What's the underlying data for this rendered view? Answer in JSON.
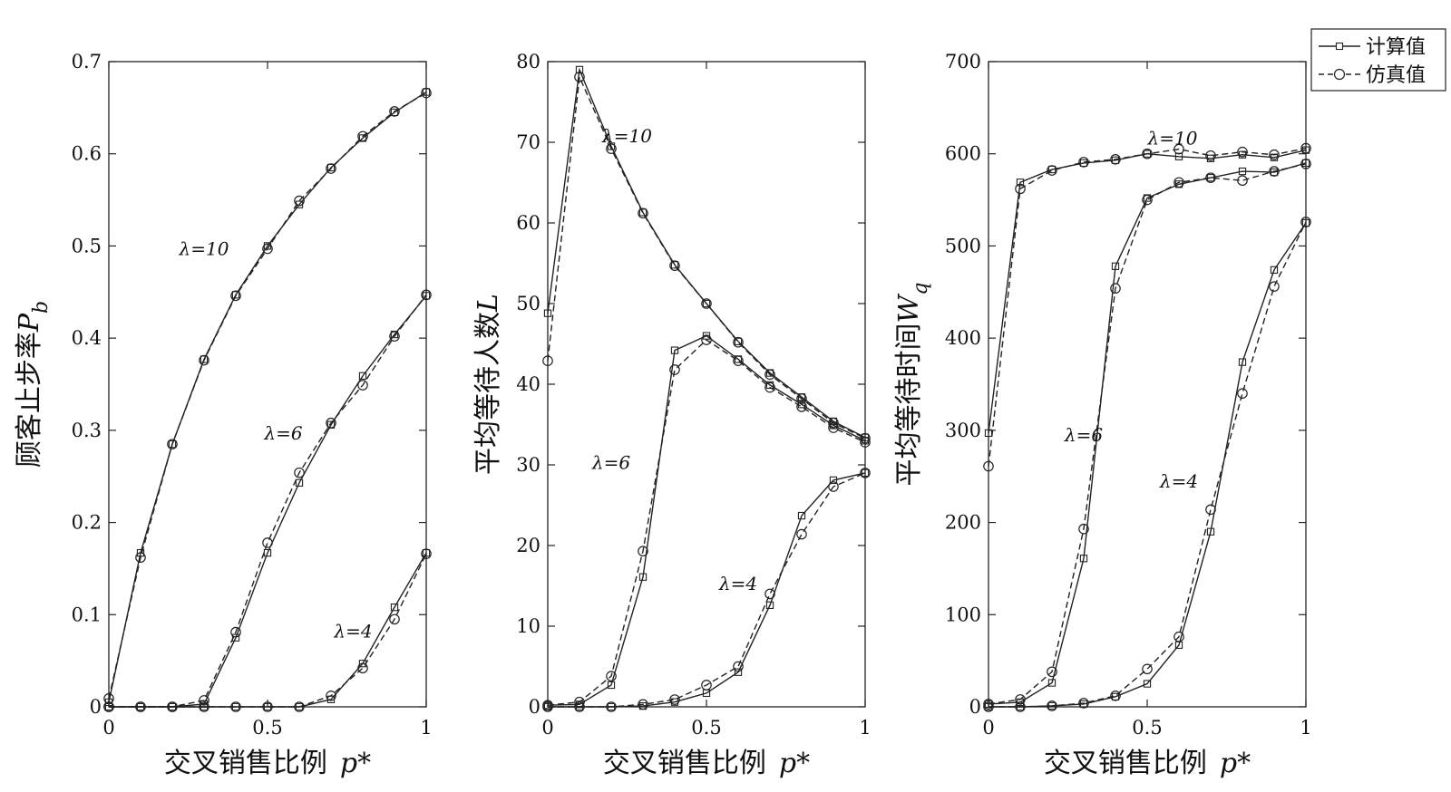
{
  "legend": {
    "entries": [
      {
        "label": "计算值",
        "marker": "square",
        "dash": "solid"
      },
      {
        "label": "仿真值",
        "marker": "circle",
        "dash": "dashed"
      }
    ],
    "placement": "top-right"
  },
  "chart_data": [
    {
      "type": "line",
      "xlabel": "交叉销售比例",
      "xlabel_symbol": "p*",
      "ylabel": "顾客止步率",
      "ylabel_symbol": "P",
      "ylabel_sub": "b",
      "xlim": [
        0,
        1
      ],
      "ylim": [
        0,
        0.7
      ],
      "xticks": [
        0,
        0.5,
        1
      ],
      "xtick_labels": [
        "0",
        "0.5",
        "1"
      ],
      "yticks": [
        0,
        0.1,
        0.2,
        0.3,
        0.4,
        0.5,
        0.6,
        0.7
      ],
      "ytick_labels": [
        "0",
        "0.1",
        "0.2",
        "0.3",
        "0.4",
        "0.5",
        "0.6",
        "0.7"
      ],
      "x": [
        0,
        0.1,
        0.2,
        0.3,
        0.4,
        0.5,
        0.6,
        0.7,
        0.8,
        0.9,
        1.0
      ],
      "annotations": [
        {
          "text": "λ=10",
          "x": 0.3,
          "y": 0.49
        },
        {
          "text": "λ=6",
          "x": 0.55,
          "y": 0.29
        },
        {
          "text": "λ=4",
          "x": 0.77,
          "y": 0.075
        }
      ],
      "series": [
        {
          "name": "计算值",
          "lambda": "10",
          "values": [
            0.005,
            0.167,
            0.285,
            0.377,
            0.447,
            0.5,
            0.545,
            0.585,
            0.617,
            0.645,
            0.667
          ]
        },
        {
          "name": "仿真值",
          "lambda": "10",
          "values": [
            0.009,
            0.162,
            0.285,
            0.376,
            0.446,
            0.497,
            0.549,
            0.584,
            0.619,
            0.646,
            0.666
          ]
        },
        {
          "name": "计算值",
          "lambda": "6",
          "values": [
            0,
            0,
            0,
            0.003,
            0.075,
            0.167,
            0.243,
            0.306,
            0.359,
            0.404,
            0.446
          ]
        },
        {
          "name": "仿真值",
          "lambda": "6",
          "values": [
            0,
            0,
            0,
            0.007,
            0.081,
            0.178,
            0.254,
            0.308,
            0.349,
            0.402,
            0.447
          ]
        },
        {
          "name": "计算值",
          "lambda": "4",
          "values": [
            0,
            0,
            0,
            0,
            0,
            0,
            0,
            0.008,
            0.047,
            0.108,
            0.167
          ]
        },
        {
          "name": "仿真值",
          "lambda": "4",
          "values": [
            0,
            0,
            0,
            0,
            0,
            0,
            0,
            0.012,
            0.042,
            0.095,
            0.166
          ]
        }
      ]
    },
    {
      "type": "line",
      "xlabel": "交叉销售比例",
      "xlabel_symbol": "p*",
      "ylabel": "平均等待人数",
      "ylabel_symbol": "L",
      "ylabel_sub": "",
      "xlim": [
        0,
        1
      ],
      "ylim": [
        0,
        80
      ],
      "xticks": [
        0,
        0.5,
        1
      ],
      "xtick_labels": [
        "0",
        "0.5",
        "1"
      ],
      "yticks": [
        0,
        10,
        20,
        30,
        40,
        50,
        60,
        70,
        80
      ],
      "ytick_labels": [
        "0",
        "10",
        "20",
        "30",
        "40",
        "50",
        "60",
        "70",
        "80"
      ],
      "x": [
        0,
        0.1,
        0.2,
        0.3,
        0.4,
        0.5,
        0.6,
        0.7,
        0.8,
        0.9,
        1.0
      ],
      "annotations": [
        {
          "text": "λ=10",
          "x": 0.25,
          "y": 70
        },
        {
          "text": "λ=6",
          "x": 0.2,
          "y": 29.5
        },
        {
          "text": "λ=4",
          "x": 0.6,
          "y": 14.5
        }
      ],
      "series": [
        {
          "name": "计算值",
          "lambda": "10",
          "values": [
            48.8,
            79.0,
            69.5,
            61.3,
            54.8,
            50.0,
            45.3,
            41.4,
            38.4,
            35.4,
            33.4
          ]
        },
        {
          "name": "仿真值",
          "lambda": "10",
          "values": [
            42.9,
            78.1,
            69.2,
            61.2,
            54.7,
            50.0,
            45.2,
            41.2,
            38.2,
            35.2,
            33.3
          ]
        },
        {
          "name": "计算值",
          "lambda": "6",
          "values": [
            0.2,
            0.3,
            2.7,
            16.1,
            44.2,
            46.0,
            43.1,
            39.9,
            37.5,
            34.9,
            33.0
          ]
        },
        {
          "name": "仿真值",
          "lambda": "6",
          "values": [
            0.2,
            0.6,
            3.8,
            19.3,
            41.8,
            45.5,
            42.9,
            39.6,
            37.2,
            34.6,
            32.8
          ]
        },
        {
          "name": "计算值",
          "lambda": "4",
          "values": [
            0,
            0,
            0,
            0.1,
            0.6,
            1.7,
            4.3,
            12.6,
            23.7,
            28.1,
            29.0
          ]
        },
        {
          "name": "仿真值",
          "lambda": "4",
          "values": [
            0,
            0,
            0,
            0.3,
            0.9,
            2.7,
            5.0,
            14.0,
            21.4,
            27.3,
            29.0
          ]
        }
      ]
    },
    {
      "type": "line",
      "xlabel": "交叉销售比例",
      "xlabel_symbol": "p*",
      "ylabel": "平均等待时间",
      "ylabel_symbol": "W",
      "ylabel_sub": "q",
      "xlim": [
        0,
        1
      ],
      "ylim": [
        0,
        700
      ],
      "xticks": [
        0,
        0.5,
        1
      ],
      "xtick_labels": [
        "0",
        "0.5",
        "1"
      ],
      "yticks": [
        0,
        100,
        200,
        300,
        400,
        500,
        600,
        700
      ],
      "ytick_labels": [
        "0",
        "100",
        "200",
        "300",
        "400",
        "500",
        "600",
        "700"
      ],
      "x": [
        0,
        0.1,
        0.2,
        0.3,
        0.4,
        0.5,
        0.6,
        0.7,
        0.8,
        0.9,
        1.0
      ],
      "annotations": [
        {
          "text": "λ=10",
          "x": 0.58,
          "y": 610
        },
        {
          "text": "λ=6",
          "x": 0.3,
          "y": 288
        },
        {
          "text": "λ=4",
          "x": 0.6,
          "y": 238
        }
      ],
      "series": [
        {
          "name": "计算值",
          "lambda": "10",
          "values": [
            297,
            569,
            583,
            590,
            593,
            600,
            597,
            595,
            599,
            596,
            604
          ]
        },
        {
          "name": "仿真值",
          "lambda": "10",
          "values": [
            261,
            562,
            582,
            591,
            594,
            600,
            605,
            598,
            602,
            599,
            606
          ]
        },
        {
          "name": "计算值",
          "lambda": "6",
          "values": [
            3,
            5,
            26,
            161,
            478,
            552,
            567,
            574,
            581,
            580,
            590
          ]
        },
        {
          "name": "仿真值",
          "lambda": "6",
          "values": [
            3,
            8,
            38,
            193,
            454,
            550,
            569,
            574,
            571,
            581,
            589
          ]
        },
        {
          "name": "计算值",
          "lambda": "4",
          "values": [
            0,
            0,
            1,
            3,
            11,
            25,
            67,
            190,
            374,
            474,
            525
          ]
        },
        {
          "name": "仿真值",
          "lambda": "4",
          "values": [
            0,
            0,
            1,
            4,
            12,
            41,
            76,
            214,
            340,
            456,
            526
          ]
        }
      ]
    }
  ]
}
